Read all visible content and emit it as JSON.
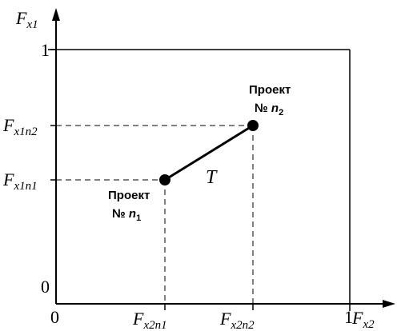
{
  "axes": {
    "y_label_main": "F",
    "y_label_sub": "x1",
    "x_label_main": "F",
    "x_label_sub": "x2",
    "one_y": "1",
    "one_x": "1",
    "zero_y": "0",
    "zero_x": "0"
  },
  "ticks": {
    "y_upper_main": "F",
    "y_upper_sub": "x1n2",
    "y_lower_main": "F",
    "y_lower_sub": "x1n1",
    "x_left_main": "F",
    "x_left_sub": "x2n1",
    "x_right_main": "F",
    "x_right_sub": "x2n2"
  },
  "points": {
    "p1_line1": "Проект",
    "p1_line2_prefix": "№ ",
    "p1_line2_n": "n",
    "p1_line2_sub": "1",
    "p2_line1": "Проект",
    "p2_line2_prefix": "№ ",
    "p2_line2_n": "n",
    "p2_line2_sub": "2"
  },
  "segment_label": "T"
}
